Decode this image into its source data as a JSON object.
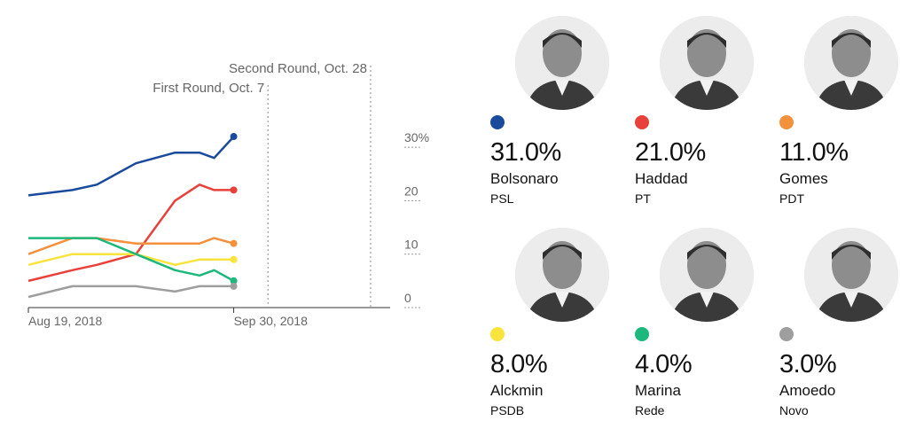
{
  "chart_data": {
    "type": "line",
    "x_start": "Aug 19, 2018",
    "x_end": "Sep 30, 2018",
    "x_tick_labels": [
      "Aug 19, 2018",
      "Sep 30, 2018"
    ],
    "y_ticks": [
      {
        "value": 0,
        "label": "0"
      },
      {
        "value": 10,
        "label": "10"
      },
      {
        "value": 20,
        "label": "20"
      },
      {
        "value": 30,
        "label": "30%"
      }
    ],
    "ylim": [
      0,
      33
    ],
    "xlim": [
      "2018-08-19",
      "2018-11-01"
    ],
    "events": [
      {
        "label": "First Round, Oct. 7",
        "date": "2018-10-07"
      },
      {
        "label": "Second Round, Oct. 28",
        "date": "2018-10-28"
      }
    ],
    "series": [
      {
        "name": "Bolsonaro",
        "color": "#1a4a9c",
        "points": [
          [
            "2018-08-19",
            20
          ],
          [
            "2018-08-28",
            21
          ],
          [
            "2018-09-02",
            22
          ],
          [
            "2018-09-10",
            26
          ],
          [
            "2018-09-18",
            28
          ],
          [
            "2018-09-23",
            28
          ],
          [
            "2018-09-26",
            27
          ],
          [
            "2018-09-30",
            31
          ]
        ]
      },
      {
        "name": "Haddad",
        "color": "#e8413c",
        "points": [
          [
            "2018-08-19",
            4
          ],
          [
            "2018-08-28",
            6
          ],
          [
            "2018-09-02",
            7
          ],
          [
            "2018-09-10",
            9
          ],
          [
            "2018-09-18",
            19
          ],
          [
            "2018-09-23",
            22
          ],
          [
            "2018-09-26",
            21
          ],
          [
            "2018-09-30",
            21
          ]
        ]
      },
      {
        "name": "Gomes",
        "color": "#f3913c",
        "points": [
          [
            "2018-08-19",
            9
          ],
          [
            "2018-08-28",
            12
          ],
          [
            "2018-09-02",
            12
          ],
          [
            "2018-09-10",
            11
          ],
          [
            "2018-09-18",
            11
          ],
          [
            "2018-09-23",
            11
          ],
          [
            "2018-09-26",
            12
          ],
          [
            "2018-09-30",
            11
          ]
        ]
      },
      {
        "name": "Alckmin",
        "color": "#f8e43c",
        "points": [
          [
            "2018-08-19",
            7
          ],
          [
            "2018-08-28",
            9
          ],
          [
            "2018-09-02",
            9
          ],
          [
            "2018-09-10",
            9
          ],
          [
            "2018-09-18",
            7
          ],
          [
            "2018-09-23",
            8
          ],
          [
            "2018-09-26",
            8
          ],
          [
            "2018-09-30",
            8
          ]
        ]
      },
      {
        "name": "Marina",
        "color": "#1db87c",
        "points": [
          [
            "2018-08-19",
            12
          ],
          [
            "2018-08-28",
            12
          ],
          [
            "2018-09-02",
            12
          ],
          [
            "2018-09-10",
            9
          ],
          [
            "2018-09-18",
            6
          ],
          [
            "2018-09-23",
            5
          ],
          [
            "2018-09-26",
            6
          ],
          [
            "2018-09-30",
            4
          ]
        ]
      },
      {
        "name": "Amoedo",
        "color": "#9e9e9e",
        "points": [
          [
            "2018-08-19",
            1
          ],
          [
            "2018-08-28",
            3
          ],
          [
            "2018-09-02",
            3
          ],
          [
            "2018-09-10",
            3
          ],
          [
            "2018-09-18",
            2
          ],
          [
            "2018-09-23",
            3
          ],
          [
            "2018-09-26",
            3
          ],
          [
            "2018-09-30",
            3
          ]
        ]
      }
    ]
  },
  "candidates": [
    {
      "name": "Bolsonaro",
      "party": "PSL",
      "pct": "31.0%",
      "color": "#1a4a9c"
    },
    {
      "name": "Haddad",
      "party": "PT",
      "pct": "21.0%",
      "color": "#e8413c"
    },
    {
      "name": "Gomes",
      "party": "PDT",
      "pct": "11.0%",
      "color": "#f3913c"
    },
    {
      "name": "Alckmin",
      "party": "PSDB",
      "pct": "8.0%",
      "color": "#f8e43c"
    },
    {
      "name": "Marina",
      "party": "Rede",
      "pct": "4.0%",
      "color": "#1db87c"
    },
    {
      "name": "Amoedo",
      "party": "Novo",
      "pct": "3.0%",
      "color": "#9e9e9e"
    }
  ]
}
